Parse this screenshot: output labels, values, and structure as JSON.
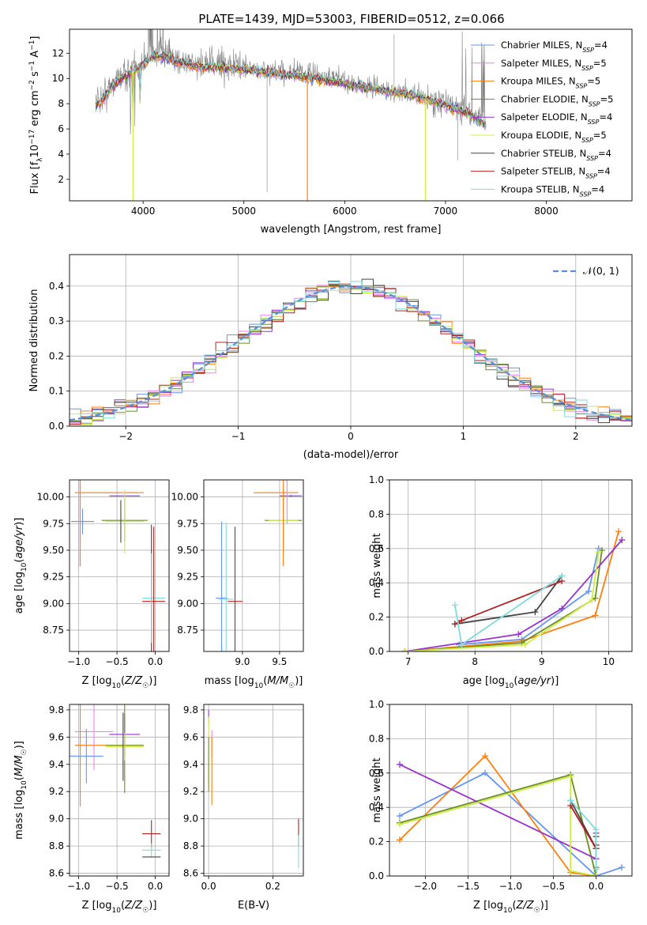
{
  "figure": {
    "title": "PLATE=1439, MJD=53003, FIBERID=0512, z=0.066"
  },
  "chart_data": [
    {
      "type": "line",
      "title": "PLATE=1439, MJD=53003, FIBERID=0512, z=0.066",
      "xlabel": "wavelength [Angstrom, rest frame]",
      "ylabel": "Flux [f_λ10^-17 erg cm^-2 s^-1 A^-1]",
      "xlim": [
        3270,
        8850
      ],
      "ylim": [
        0.3,
        13.9
      ],
      "xticks": [
        4000,
        5000,
        6000,
        7000,
        8000
      ],
      "yticks": [
        2,
        4,
        6,
        8,
        10,
        12
      ],
      "grid": false,
      "legend_position": "upper-right",
      "data_trace": {
        "name": "data",
        "color": "#808080",
        "x": [
          3530,
          3600,
          3700,
          3800,
          3900,
          4000,
          4100,
          4200,
          4300,
          4400,
          4500,
          4600,
          4800,
          5000,
          5200,
          5400,
          5600,
          5800,
          6000,
          6200,
          6400,
          6600,
          6800,
          7000,
          7200,
          7400
        ],
        "y": [
          8.2,
          8.6,
          9.7,
          10.3,
          10.6,
          11.3,
          12.0,
          12.0,
          11.6,
          11.4,
          11.2,
          11.1,
          11.2,
          10.9,
          10.6,
          10.5,
          10.4,
          10.1,
          9.8,
          9.4,
          9.1,
          8.9,
          8.4,
          8.0,
          7.5,
          6.8
        ]
      },
      "model_x": [
        3530,
        3600,
        3700,
        3800,
        3900,
        4000,
        4100,
        4200,
        4300,
        4400,
        4500,
        4600,
        4800,
        5000,
        5200,
        5400,
        5600,
        5800,
        6000,
        6200,
        6400,
        6600,
        6800,
        7000,
        7200,
        7400
      ],
      "model_y": [
        7.9,
        8.3,
        9.4,
        10.1,
        10.5,
        11.0,
        11.8,
        11.7,
        11.4,
        11.2,
        11.0,
        10.9,
        10.9,
        10.7,
        10.5,
        10.3,
        10.1,
        9.9,
        9.6,
        9.3,
        9.0,
        8.8,
        8.4,
        7.9,
        7.3,
        6.3
      ],
      "series": [
        {
          "name": "Chabrier MILES, N_SSP=4",
          "color": "#6495ed"
        },
        {
          "name": "Salpeter MILES, N_SSP=5",
          "color": "#ee82ee"
        },
        {
          "name": "Kroupa MILES, N_SSP=5",
          "color": "#ff7f0e"
        },
        {
          "name": "Chabrier ELODIE, N_SSP=5",
          "color": "#6b8e23"
        },
        {
          "name": "Salpeter ELODIE, N_SSP=4",
          "color": "#9932cc"
        },
        {
          "name": "Kroupa ELODIE, N_SSP=5",
          "color": "#ccee44"
        },
        {
          "name": "Chabrier STELIB, N_SSP=4",
          "color": "#444444"
        },
        {
          "name": "Salpeter STELIB, N_SSP=4",
          "color": "#b22222"
        },
        {
          "name": "Kroupa STELIB, N_SSP=4",
          "color": "#7fdbdb"
        }
      ]
    },
    {
      "type": "step",
      "xlabel": "(data-model)/error",
      "ylabel": "Normed distribution",
      "xlim": [
        -2.5,
        2.5
      ],
      "ylim": [
        0,
        0.49
      ],
      "xticks": [
        -2,
        -1,
        0,
        1,
        2
      ],
      "yticks": [
        0.0,
        0.1,
        0.2,
        0.3,
        0.4
      ],
      "grid": true,
      "legend_position": "upper-right",
      "legend_label": "𝒩(0, 1)",
      "bin_width": 0.1,
      "reference_curve": "normal pdf, mean 0, sigma 1, dashed, #5b8fd6"
    },
    {
      "type": "errorbar",
      "xlabel": "Z [log10(Z/Z☉)]",
      "ylabel": "age  [log10(age/yr)]",
      "xlim": [
        -1.12,
        0.18
      ],
      "ylim": [
        8.55,
        10.16
      ],
      "xticks": [
        -1.0,
        -0.5,
        0.0
      ],
      "yticks": [
        8.75,
        9.0,
        9.25,
        9.5,
        9.75,
        10.0
      ]
    },
    {
      "type": "errorbar",
      "xlabel": "mass [log10(M/M☉)]",
      "xlim": [
        8.48,
        9.82
      ],
      "ylim": [
        8.55,
        10.16
      ],
      "xticks": [
        9.0,
        9.5
      ],
      "yticks": [
        8.75,
        9.0,
        9.25,
        9.5,
        9.75,
        10.0
      ]
    },
    {
      "type": "line",
      "xlabel": "age  [log10(age/yr)]",
      "ylabel": "mass weight",
      "xlim": [
        6.72,
        10.35
      ],
      "ylim": [
        0,
        1.0
      ],
      "xticks": [
        7,
        8,
        9,
        10
      ],
      "yticks": [
        0.0,
        0.2,
        0.4,
        0.6,
        0.8,
        1.0
      ],
      "grid": true
    },
    {
      "type": "errorbar",
      "xlabel": "Z [log10(Z/Z☉)]",
      "ylabel": "mass [log10(M/M☉)]",
      "xlim": [
        -1.12,
        0.18
      ],
      "ylim": [
        8.58,
        9.84
      ],
      "xticks": [
        -1.0,
        -0.5,
        0.0
      ],
      "yticks": [
        8.6,
        8.8,
        9.0,
        9.2,
        9.4,
        9.6,
        9.8
      ]
    },
    {
      "type": "errorbar",
      "xlabel": "E(B-V)",
      "xlim": [
        -0.015,
        0.295
      ],
      "ylim": [
        8.58,
        9.84
      ],
      "xticks": [
        0.0,
        0.2
      ],
      "yticks": [
        8.6,
        8.8,
        9.0,
        9.2,
        9.4,
        9.6,
        9.8
      ]
    },
    {
      "type": "line",
      "xlabel": "Z [log10(Z/Z☉)]",
      "ylabel": "mass weight",
      "xlim": [
        -2.42,
        0.42
      ],
      "ylim": [
        0,
        1.0
      ],
      "xticks": [
        -2.0,
        -1.5,
        -1.0,
        -0.5,
        0.0
      ],
      "yticks": [
        0.0,
        0.2,
        0.4,
        0.6,
        0.8,
        1.0
      ],
      "grid": true
    }
  ],
  "fits": [
    {
      "name": "Chabrier MILES",
      "color": "#6495ed",
      "age": [
        9.77,
        10.0,
        9.03,
        8.75
      ],
      "Z": [
        -0.9,
        -0.5,
        0.0,
        0.0
      ],
      "m": [
        9.45,
        9.62,
        8.78,
        8.7
      ],
      "ebv": 0.28,
      "w_age": [
        0.35,
        0.6,
        0.05,
        0.0
      ],
      "w_Z": [
        0.35,
        0.6,
        0.0,
        0.05
      ],
      "age_pts": [
        [
          7.76,
          0.04
        ],
        [
          8.7,
          0.07
        ],
        [
          9.7,
          0.35
        ],
        [
          9.85,
          0.6
        ]
      ],
      "Z_pts": [
        [
          -2.3,
          0.35
        ],
        [
          -1.3,
          0.6
        ],
        [
          0.0,
          0.0
        ],
        [
          0.3,
          0.05
        ]
      ]
    },
    {
      "name": "Salpeter MILES",
      "color": "#ee82ee",
      "age": [
        10.05,
        9.75
      ],
      "Z": [
        -1.0,
        -0.4
      ],
      "m": [
        9.65,
        9.6
      ],
      "ebv": 0.01,
      "w_age": [],
      "w_Z": [],
      "age_pts": [],
      "Z_pts": []
    },
    {
      "name": "Kroupa MILES",
      "color": "#ff7f0e",
      "age_pts": [
        [
          6.95,
          0.0
        ],
        [
          8.7,
          0.06
        ],
        [
          9.8,
          0.21
        ],
        [
          10.15,
          0.7
        ]
      ],
      "Z_pts": [
        [
          -2.3,
          0.21
        ],
        [
          -1.3,
          0.7
        ],
        [
          -0.3,
          0.02
        ],
        [
          0.0,
          0.0
        ]
      ]
    },
    {
      "name": "Chabrier ELODIE",
      "color": "#6b8e23",
      "age_pts": [
        [
          6.95,
          0.0
        ],
        [
          8.7,
          0.05
        ],
        [
          9.8,
          0.31
        ],
        [
          9.9,
          0.59
        ]
      ],
      "Z_pts": [
        [
          -2.3,
          0.31
        ],
        [
          -0.3,
          0.59
        ],
        [
          0.0,
          0.0
        ],
        [
          0.0,
          0.05
        ]
      ]
    },
    {
      "name": "Salpeter ELODIE",
      "color": "#9932cc",
      "age_pts": [
        [
          6.95,
          0.0
        ],
        [
          8.65,
          0.1
        ],
        [
          9.3,
          0.25
        ],
        [
          10.2,
          0.65
        ]
      ],
      "Z_pts": [
        [
          -2.3,
          0.65
        ],
        [
          0.0,
          0.1
        ],
        [
          0.0,
          0.25
        ]
      ]
    },
    {
      "name": "Kroupa ELODIE",
      "color": "#ccee44",
      "age_pts": [
        [
          6.95,
          0.0
        ],
        [
          8.75,
          0.04
        ],
        [
          9.75,
          0.3
        ],
        [
          9.85,
          0.58
        ]
      ],
      "Z_pts": [
        [
          -2.3,
          0.3
        ],
        [
          -0.3,
          0.58
        ],
        [
          -0.3,
          0.03
        ],
        [
          0.0,
          0.0
        ]
      ]
    },
    {
      "name": "Chabrier STELIB",
      "color": "#444444",
      "age_pts": [
        [
          7.7,
          0.16
        ],
        [
          8.9,
          0.23
        ],
        [
          9.3,
          0.44
        ]
      ],
      "Z_pts": [
        [
          -0.3,
          0.44
        ],
        [
          0.0,
          0.16
        ],
        [
          0.0,
          0.23
        ]
      ]
    },
    {
      "name": "Salpeter STELIB",
      "color": "#b22222",
      "age_pts": [
        [
          7.7,
          0.16
        ],
        [
          7.8,
          0.18
        ],
        [
          9.3,
          0.41
        ]
      ],
      "Z_pts": [
        [
          -0.3,
          0.41
        ],
        [
          0.0,
          0.16
        ],
        [
          0.0,
          0.18
        ]
      ]
    },
    {
      "name": "Kroupa STELIB",
      "color": "#7fdbdb",
      "age_pts": [
        [
          7.7,
          0.27
        ],
        [
          7.8,
          0.04
        ],
        [
          9.3,
          0.44
        ]
      ],
      "Z_pts": [
        [
          -0.3,
          0.44
        ],
        [
          0.0,
          0.27
        ],
        [
          0.0,
          0.04
        ]
      ]
    }
  ]
}
